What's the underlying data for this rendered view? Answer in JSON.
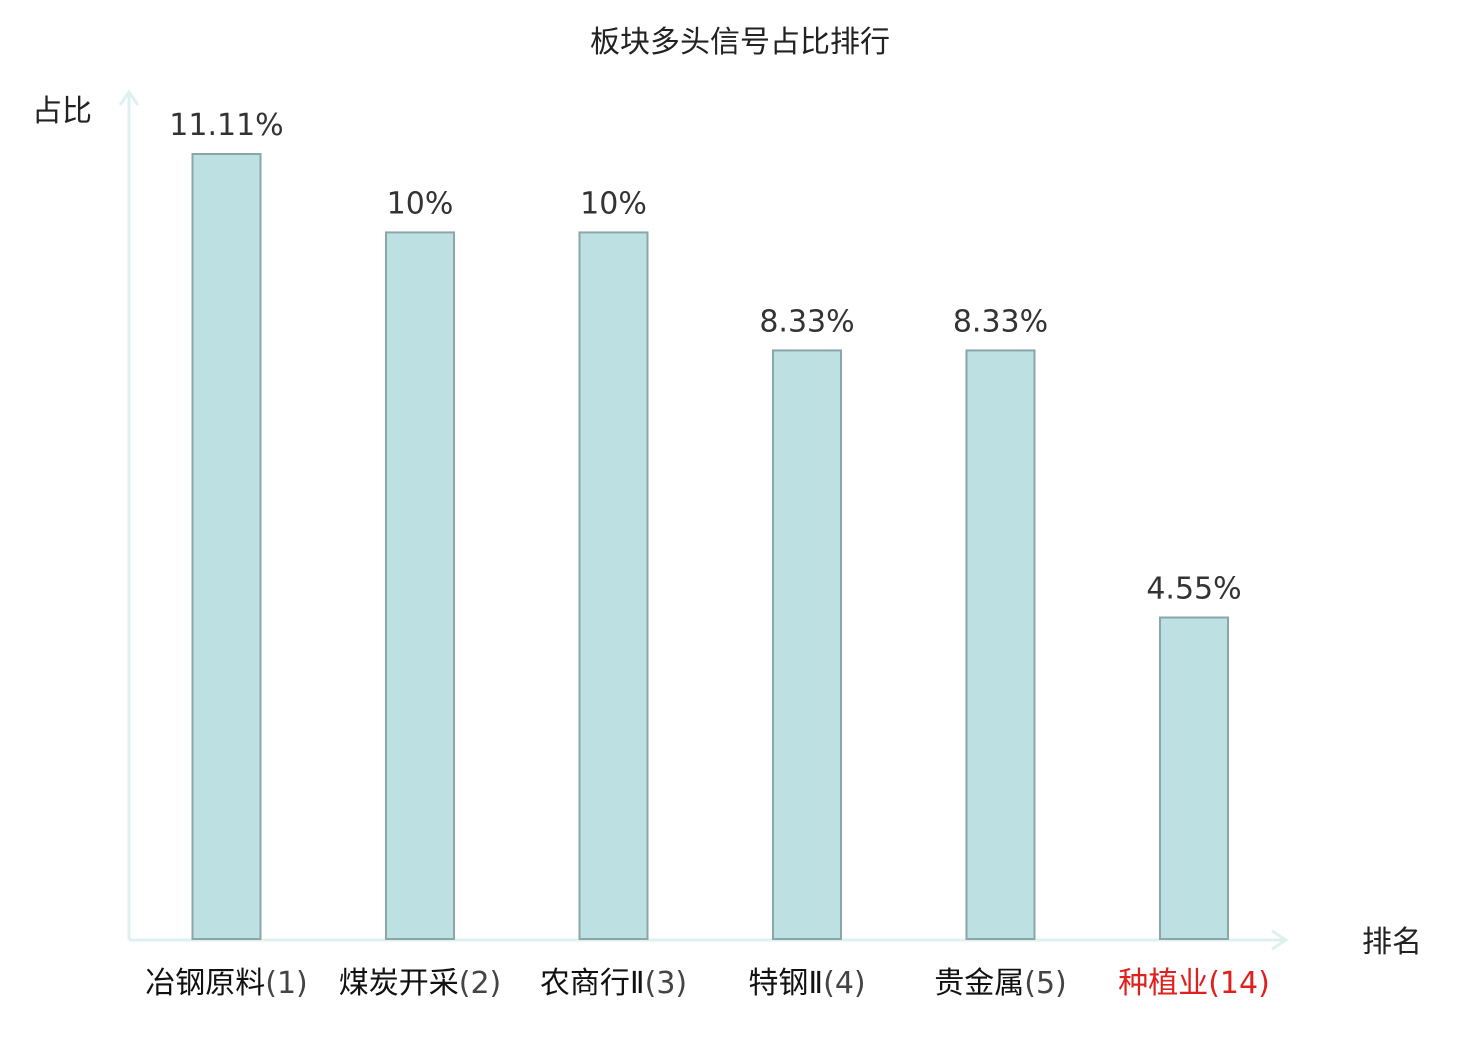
{
  "chart_data": {
    "type": "bar",
    "title": "板块多头信号占比排行",
    "ylabel": "占比",
    "xlabel": "排名",
    "ylim": [
      0,
      12
    ],
    "grid": false,
    "value_suffix": "%",
    "categories": [
      {
        "name": "冶钢原料",
        "rank": "(1)",
        "value": 11.11,
        "value_label": "11.11%",
        "highlight": false
      },
      {
        "name": "煤炭开采",
        "rank": "(2)",
        "value": 10,
        "value_label": "10%",
        "highlight": false
      },
      {
        "name": "农商行Ⅱ",
        "rank": "(3)",
        "value": 10,
        "value_label": "10%",
        "highlight": false
      },
      {
        "name": "特钢Ⅱ",
        "rank": "(4)",
        "value": 8.33,
        "value_label": "8.33%",
        "highlight": false
      },
      {
        "name": "贵金属",
        "rank": "(5)",
        "value": 8.33,
        "value_label": "8.33%",
        "highlight": false
      },
      {
        "name": "种植业",
        "rank": "(14)",
        "value": 4.55,
        "value_label": "4.55%",
        "highlight": true
      }
    ]
  },
  "colors": {
    "bar_fill": "#bde0e2",
    "bar_stroke": "#8aa6aa",
    "axis": "#dff1ef",
    "highlight_text": "#e0201e",
    "normal_text": "#111111",
    "rank_text": "#444444"
  }
}
